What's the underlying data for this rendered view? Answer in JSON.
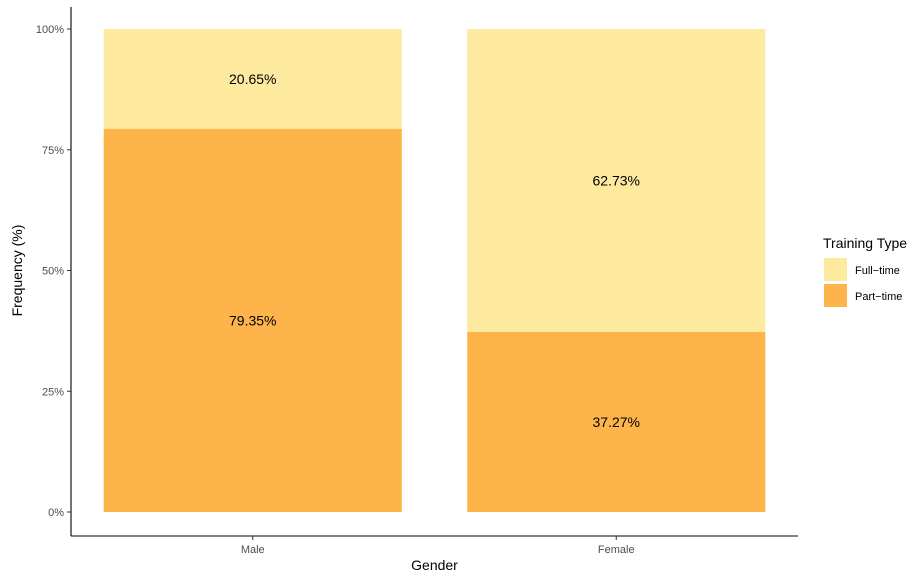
{
  "chart_data": {
    "type": "bar",
    "stacked": true,
    "percent": true,
    "categories": [
      "Male",
      "Female"
    ],
    "series": [
      {
        "name": "Part−time",
        "values": [
          79.35,
          37.27
        ],
        "labels": [
          "79.35%",
          "37.27%"
        ],
        "color": "#FDB44B"
      },
      {
        "name": "Full−time",
        "values": [
          20.65,
          62.73
        ],
        "labels": [
          "20.65%",
          "62.73%"
        ],
        "color": "#FDEA9E"
      }
    ],
    "xlabel": "Gender",
    "ylabel": "Frequency (%)",
    "ylim": [
      0,
      100
    ],
    "yticks": [
      0,
      25,
      50,
      75,
      100
    ],
    "ytick_labels": [
      "0%",
      "25%",
      "50%",
      "75%",
      "100%"
    ],
    "grid": false,
    "legend": {
      "title": "Training Type",
      "placement": "right",
      "entries": [
        "Full−time",
        "Part−time"
      ]
    }
  }
}
